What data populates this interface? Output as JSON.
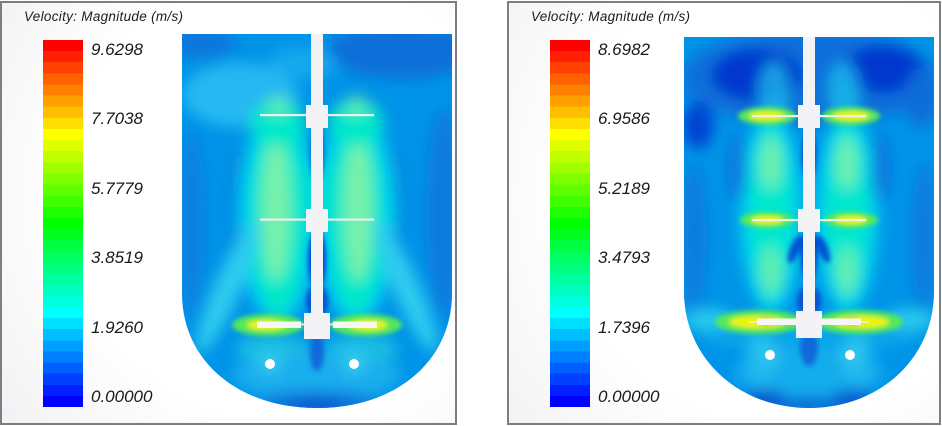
{
  "panels": [
    {
      "title": "Velocity: Magnitude (m/s)",
      "colorbar": {
        "orientation": "vertical",
        "top_color": "#ff0000",
        "bottom_color": "#0000ff",
        "ticks": [
          "9.6298",
          "7.7038",
          "5.7779",
          "3.8519",
          "1.9260",
          "0.00000"
        ]
      }
    },
    {
      "title": "Velocity: Magnitude (m/s)",
      "colorbar": {
        "orientation": "vertical",
        "top_color": "#ff0000",
        "bottom_color": "#0000ff",
        "ticks": [
          "8.6982",
          "6.9586",
          "5.2189",
          "3.4793",
          "1.7396",
          "0.00000"
        ]
      }
    }
  ],
  "chart_data": [
    {
      "type": "heatmap",
      "title": "Velocity: Magnitude (m/s)",
      "units": "m/s",
      "colormap": "rainbow (blue = 0 to red = max)",
      "value_range": [
        0,
        9.6298
      ],
      "legend_ticks": [
        9.6298,
        7.7038,
        5.7779,
        3.8519,
        1.926,
        0.0
      ],
      "legend_position": "left",
      "scene": "CFD velocity-magnitude contour of a stirred-tank vessel cross-section: central shaft with three impellers, dished (rounded) bottom, two circular sparger ports near the base",
      "notable_features": [
        "yellow/green high-velocity jets (~4-7 m/s) at the bottom impeller blade tips",
        "cyan-aqua upwelling plumes (~2-3 m/s) flanking the shaft between impellers",
        "azure low-velocity bulk (~0.5-1.5 m/s) with darker blue patches near the top surface and walls"
      ]
    },
    {
      "type": "heatmap",
      "title": "Velocity: Magnitude (m/s)",
      "units": "m/s",
      "colormap": "rainbow (blue = 0 to red = max)",
      "value_range": [
        0,
        8.6982
      ],
      "legend_ticks": [
        8.6982,
        6.9586,
        5.2189,
        3.4793,
        1.7396,
        0.0
      ],
      "legend_position": "left",
      "scene": "CFD velocity-magnitude contour of the same stirred-tank vessel: central shaft with three impellers, dished bottom, two sparger ports",
      "notable_features": [
        "yellow jets at all three impeller blade tips, strongest at the bottom impeller with small orange/red peaks",
        "narrow cyan-aqua circulation plumes between impellers",
        "pronounced dark navy low-velocity zones near the free surface"
      ]
    }
  ],
  "colors": {
    "panel_border": "#7e7e82",
    "field_base_blue": "#0094e8",
    "field_dark_blue": "#0537ce",
    "field_cyan": "#00d0ee",
    "field_aqua": "#00e8cc",
    "field_green": "#8cf2a4",
    "field_yellow": "#f0f400",
    "field_orange": "#ff7c00",
    "hardware_white": "#f3f3f5"
  }
}
